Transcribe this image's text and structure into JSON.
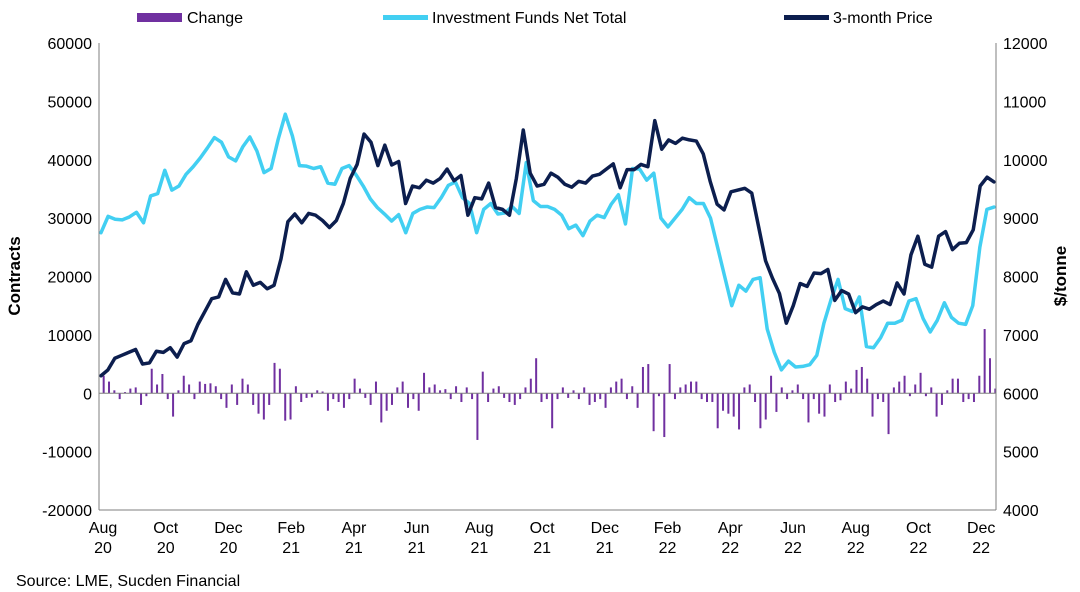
{
  "chart_data": {
    "type": "bar+line",
    "source": "Source: LME, Sucden Financial",
    "legend": [
      {
        "label": "Change",
        "color": "#7030A0",
        "kind": "bar"
      },
      {
        "label": "Investment Funds Net Total",
        "color": "#42CFF2",
        "kind": "line"
      },
      {
        "label": "3-month Price",
        "color": "#0C1E4E",
        "kind": "line"
      }
    ],
    "y_left": {
      "label": "Contracts",
      "min": -20000,
      "max": 60000,
      "ticks": [
        "-20000",
        "-10000",
        "0",
        "10000",
        "20000",
        "30000",
        "40000",
        "50000",
        "60000"
      ]
    },
    "y_right": {
      "label": "$/tonne",
      "min": 4000,
      "max": 12000,
      "ticks": [
        "4000",
        "5000",
        "6000",
        "7000",
        "8000",
        "9000",
        "10000",
        "11000",
        "12000"
      ]
    },
    "x_ticks": [
      {
        "line1": "Aug",
        "line2": "20"
      },
      {
        "line1": "Oct",
        "line2": "20"
      },
      {
        "line1": "Dec",
        "line2": "20"
      },
      {
        "line1": "Feb",
        "line2": "21"
      },
      {
        "line1": "Apr",
        "line2": "21"
      },
      {
        "line1": "Jun",
        "line2": "21"
      },
      {
        "line1": "Aug",
        "line2": "21"
      },
      {
        "line1": "Oct",
        "line2": "21"
      },
      {
        "line1": "Dec",
        "line2": "21"
      },
      {
        "line1": "Feb",
        "line2": "22"
      },
      {
        "line1": "Apr",
        "line2": "22"
      },
      {
        "line1": "Jun",
        "line2": "22"
      },
      {
        "line1": "Aug",
        "line2": "22"
      },
      {
        "line1": "Oct",
        "line2": "22"
      },
      {
        "line1": "Dec",
        "line2": "22"
      }
    ],
    "series": [
      {
        "name": "Investment Funds Net Total",
        "axis": "left",
        "color": "#42CFF2",
        "values": [
          27500,
          30300,
          29800,
          29700,
          30200,
          31000,
          29200,
          33800,
          34200,
          38200,
          34800,
          35500,
          37500,
          38800,
          40300,
          42000,
          43800,
          43000,
          40500,
          39800,
          42200,
          43900,
          41500,
          37800,
          38500,
          43500,
          47800,
          44100,
          39000,
          38900,
          38500,
          38800,
          36000,
          35800,
          38500,
          39000,
          37400,
          35500,
          33300,
          31800,
          30700,
          29500,
          30600,
          27500,
          30800,
          31500,
          31900,
          31800,
          33500,
          35600,
          36200,
          33500,
          32500,
          27500,
          31500,
          32500,
          30700,
          30900,
          32000,
          30800,
          39500,
          33000,
          32000,
          32000,
          31500,
          30500,
          28200,
          28800,
          27000,
          29500,
          30500,
          30100,
          32400,
          34000,
          29000,
          38500,
          38400,
          36500,
          37700,
          30000,
          28500,
          30000,
          31500,
          33500,
          32500,
          32500,
          30000,
          25000,
          20000,
          15000,
          18500,
          17500,
          19500,
          19800,
          11000,
          7000,
          4000,
          5500,
          4500,
          4600,
          4900,
          6500,
          12000,
          16000,
          19500,
          14500,
          14000,
          16500,
          8000,
          7800,
          9500,
          12000,
          12000,
          12500,
          15800,
          16200,
          12800,
          10500,
          12500,
          15500,
          13000,
          12000,
          11800,
          15000,
          25000,
          31500,
          31900
        ]
      },
      {
        "name": "3-month Price",
        "axis": "right",
        "color": "#0C1E4E",
        "values": [
          6300,
          6400,
          6600,
          6650,
          6700,
          6750,
          6500,
          6520,
          6720,
          6700,
          6780,
          6620,
          6850,
          6900,
          7180,
          7400,
          7620,
          7650,
          7950,
          7720,
          7700,
          8080,
          7850,
          7900,
          7790,
          7850,
          8300,
          8940,
          9070,
          8920,
          9080,
          9050,
          8960,
          8840,
          8960,
          9250,
          9680,
          9920,
          10440,
          10300,
          9900,
          10250,
          9910,
          9970,
          9250,
          9550,
          9520,
          9650,
          9600,
          9680,
          9840,
          9640,
          9730,
          9050,
          9350,
          9330,
          9600,
          9180,
          9150,
          9050,
          9680,
          10510,
          9770,
          9550,
          9580,
          9770,
          9700,
          9580,
          9530,
          9630,
          9600,
          9720,
          9750,
          9840,
          9930,
          9520,
          9830,
          9830,
          9920,
          9880,
          10670,
          10180,
          10340,
          10280,
          10370,
          10340,
          10320,
          10100,
          9630,
          9240,
          9140,
          9450,
          9480,
          9510,
          9430,
          8850,
          8270,
          7970,
          7710,
          7200,
          7500,
          7880,
          7830,
          8060,
          8050,
          8120,
          7590,
          7760,
          7700,
          7380,
          7480,
          7440,
          7520,
          7580,
          7520,
          7890,
          7700,
          8370,
          8690,
          8210,
          8160,
          8690,
          8770,
          8460,
          8570,
          8580,
          8800,
          9550,
          9700,
          9620
        ]
      }
    ],
    "bars": {
      "name": "Change",
      "axis": "left",
      "color": "#7030A0",
      "values": [
        3000,
        2000,
        500,
        -1000,
        200,
        800,
        1000,
        -2000,
        -500,
        4200,
        1500,
        3300,
        -1000,
        -4000,
        500,
        3000,
        1500,
        -1000,
        2000,
        1600,
        1700,
        1200,
        -1000,
        -2500,
        1500,
        -2000,
        2500,
        1500,
        -2000,
        -3500,
        -4500,
        -2000,
        5200,
        4200,
        -4700,
        -4500,
        1200,
        -1500,
        -800,
        -700,
        500,
        300,
        -3000,
        -1000,
        -1500,
        -2500,
        -1000,
        2500,
        800,
        -800,
        -2000,
        2000,
        -5000,
        -3000,
        -2000,
        1000,
        2000,
        -2500,
        -1000,
        -3000,
        3500,
        1000,
        1500,
        500,
        700,
        -1000,
        1200,
        -1500,
        1000,
        -1000,
        -8000,
        3700,
        -1500,
        800,
        1200,
        -800,
        -1500,
        -2000,
        -1000,
        1000,
        2500,
        6000,
        -1500,
        -1000,
        -6000,
        -1000,
        1000,
        -800,
        500,
        -1000,
        1000,
        -2000,
        -1500,
        -1000,
        -2500,
        1000,
        2000,
        2500,
        -1000,
        1200,
        -2500,
        4500,
        5000,
        -6500,
        -500,
        -7500,
        5000,
        -1000,
        1000,
        1500,
        2000,
        2000,
        -1000,
        -1500,
        -1500,
        -6000,
        -3000,
        -3500,
        -4000,
        -6200,
        1000,
        1500,
        -1500,
        -6000,
        -4500,
        3000,
        -3200,
        1000,
        -1000,
        500,
        1500,
        -1000,
        -5000,
        -1000,
        -3500,
        -4000,
        1500,
        -1500,
        -1200,
        2000,
        800,
        4000,
        4500,
        2500,
        -4000,
        -1000,
        -1500,
        -7000,
        1000,
        2000,
        3000,
        -500,
        1500,
        3500,
        -500,
        1000,
        -4000,
        -2000,
        500,
        2500,
        2500,
        -1500,
        -1000,
        -1500,
        3000,
        11000,
        6000,
        800
      ]
    }
  }
}
